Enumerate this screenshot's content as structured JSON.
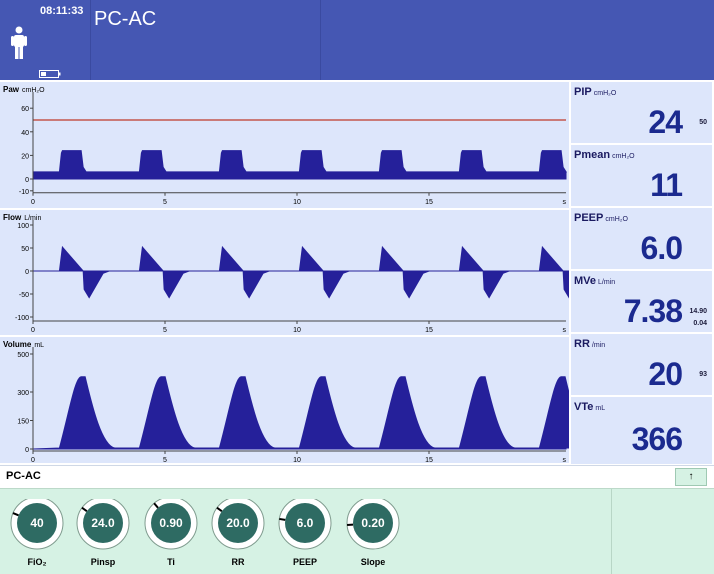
{
  "header": {
    "clock": "08:11:33",
    "mode_title": "PC-AC",
    "patient_icon": "adult-patient-icon",
    "battery_icon": "battery-icon"
  },
  "waveforms": [
    {
      "id": "paw",
      "title": "Paw",
      "unit": "cmH₂O",
      "y_ticks": [
        "60",
        "40",
        "20",
        "0",
        "-10"
      ],
      "x_ticks": [
        "0",
        "5",
        "10",
        "15",
        "s"
      ],
      "limit_line": "50",
      "limit_color": "#c0392b"
    },
    {
      "id": "flow",
      "title": "Flow",
      "unit": "L/min",
      "y_ticks": [
        "100",
        "50",
        "0",
        "-50",
        "-100"
      ],
      "x_ticks": [
        "0",
        "5",
        "10",
        "15",
        "s"
      ]
    },
    {
      "id": "volume",
      "title": "Volume",
      "unit": "mL",
      "y_ticks": [
        "500",
        "300",
        "150",
        "0"
      ],
      "x_ticks": [
        "0",
        "5",
        "10",
        "15",
        "s"
      ]
    }
  ],
  "wave_color": "#25209a",
  "numerics": [
    {
      "label": "PIP",
      "unit": "cmH₂O",
      "value": "24",
      "limit_hi": "50",
      "limit_lo": ""
    },
    {
      "label": "Pmean",
      "unit": "cmH₂O",
      "value": "11",
      "limit_hi": "",
      "limit_lo": ""
    },
    {
      "label": "PEEP",
      "unit": "cmH₂O",
      "value": "6.0",
      "limit_hi": "",
      "limit_lo": ""
    },
    {
      "label": "MVe",
      "unit": "L/min",
      "value": "7.38",
      "limit_hi": "14.90",
      "limit_lo": "0.04"
    },
    {
      "label": "RR",
      "unit": "/min",
      "value": "20",
      "limit_hi": "93",
      "limit_lo": ""
    },
    {
      "label": "VTe",
      "unit": "mL",
      "value": "366",
      "limit_hi": "",
      "limit_lo": ""
    }
  ],
  "mode_bar": {
    "label": "PC-AC",
    "expand_icon": "↑"
  },
  "controls": [
    {
      "label": "FiO₂",
      "value": "40",
      "level": 0.25
    },
    {
      "label": "Pinsp",
      "value": "24.0",
      "level": 0.3
    },
    {
      "label": "Ti",
      "value": "0.90",
      "level": 0.35
    },
    {
      "label": "RR",
      "value": "20.0",
      "level": 0.3
    },
    {
      "label": "PEEP",
      "value": "6.0",
      "level": 0.2
    },
    {
      "label": "Slope",
      "value": "0.20",
      "level": 0.15
    }
  ]
}
